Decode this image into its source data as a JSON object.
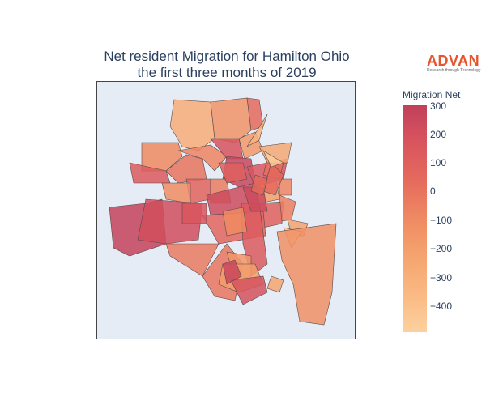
{
  "chart": {
    "title_line1": "Net resident Migration for Hamilton Ohio",
    "title_line2": "the first three months of 2019"
  },
  "logo": {
    "word": "ADVAN",
    "tagline": "Research through Technology",
    "color": "#e8542b"
  },
  "colorbar": {
    "title": "Migration Net",
    "ticks": [
      "300",
      "200",
      "100",
      "0",
      "−100",
      "−200",
      "−300",
      "−400"
    ],
    "stops": [
      "#c0405c",
      "#d9555e",
      "#e56b5d",
      "#ef8a62",
      "#f5a46f",
      "#fab983",
      "#fcd19f"
    ]
  },
  "chart_data": {
    "type": "choropleth",
    "title": "Net resident Migration for Hamilton Ohio the first three months of 2019",
    "colorbar_title": "Migration Net",
    "color_range": [
      -470,
      320
    ],
    "colorbar_ticks": [
      300,
      200,
      100,
      0,
      -100,
      -200,
      -300,
      -400
    ],
    "regions_estimated_values": [
      -260,
      -120,
      60,
      -80,
      150,
      20,
      -50,
      200,
      -150,
      -300,
      280,
      100,
      -20,
      -90,
      250,
      -180,
      180,
      40,
      -60,
      120,
      -30,
      90,
      -200,
      230,
      -10,
      10,
      160,
      -400,
      -110,
      -140,
      -170,
      210,
      70,
      130,
      260,
      -70,
      -240,
      190,
      -220,
      80
    ]
  }
}
